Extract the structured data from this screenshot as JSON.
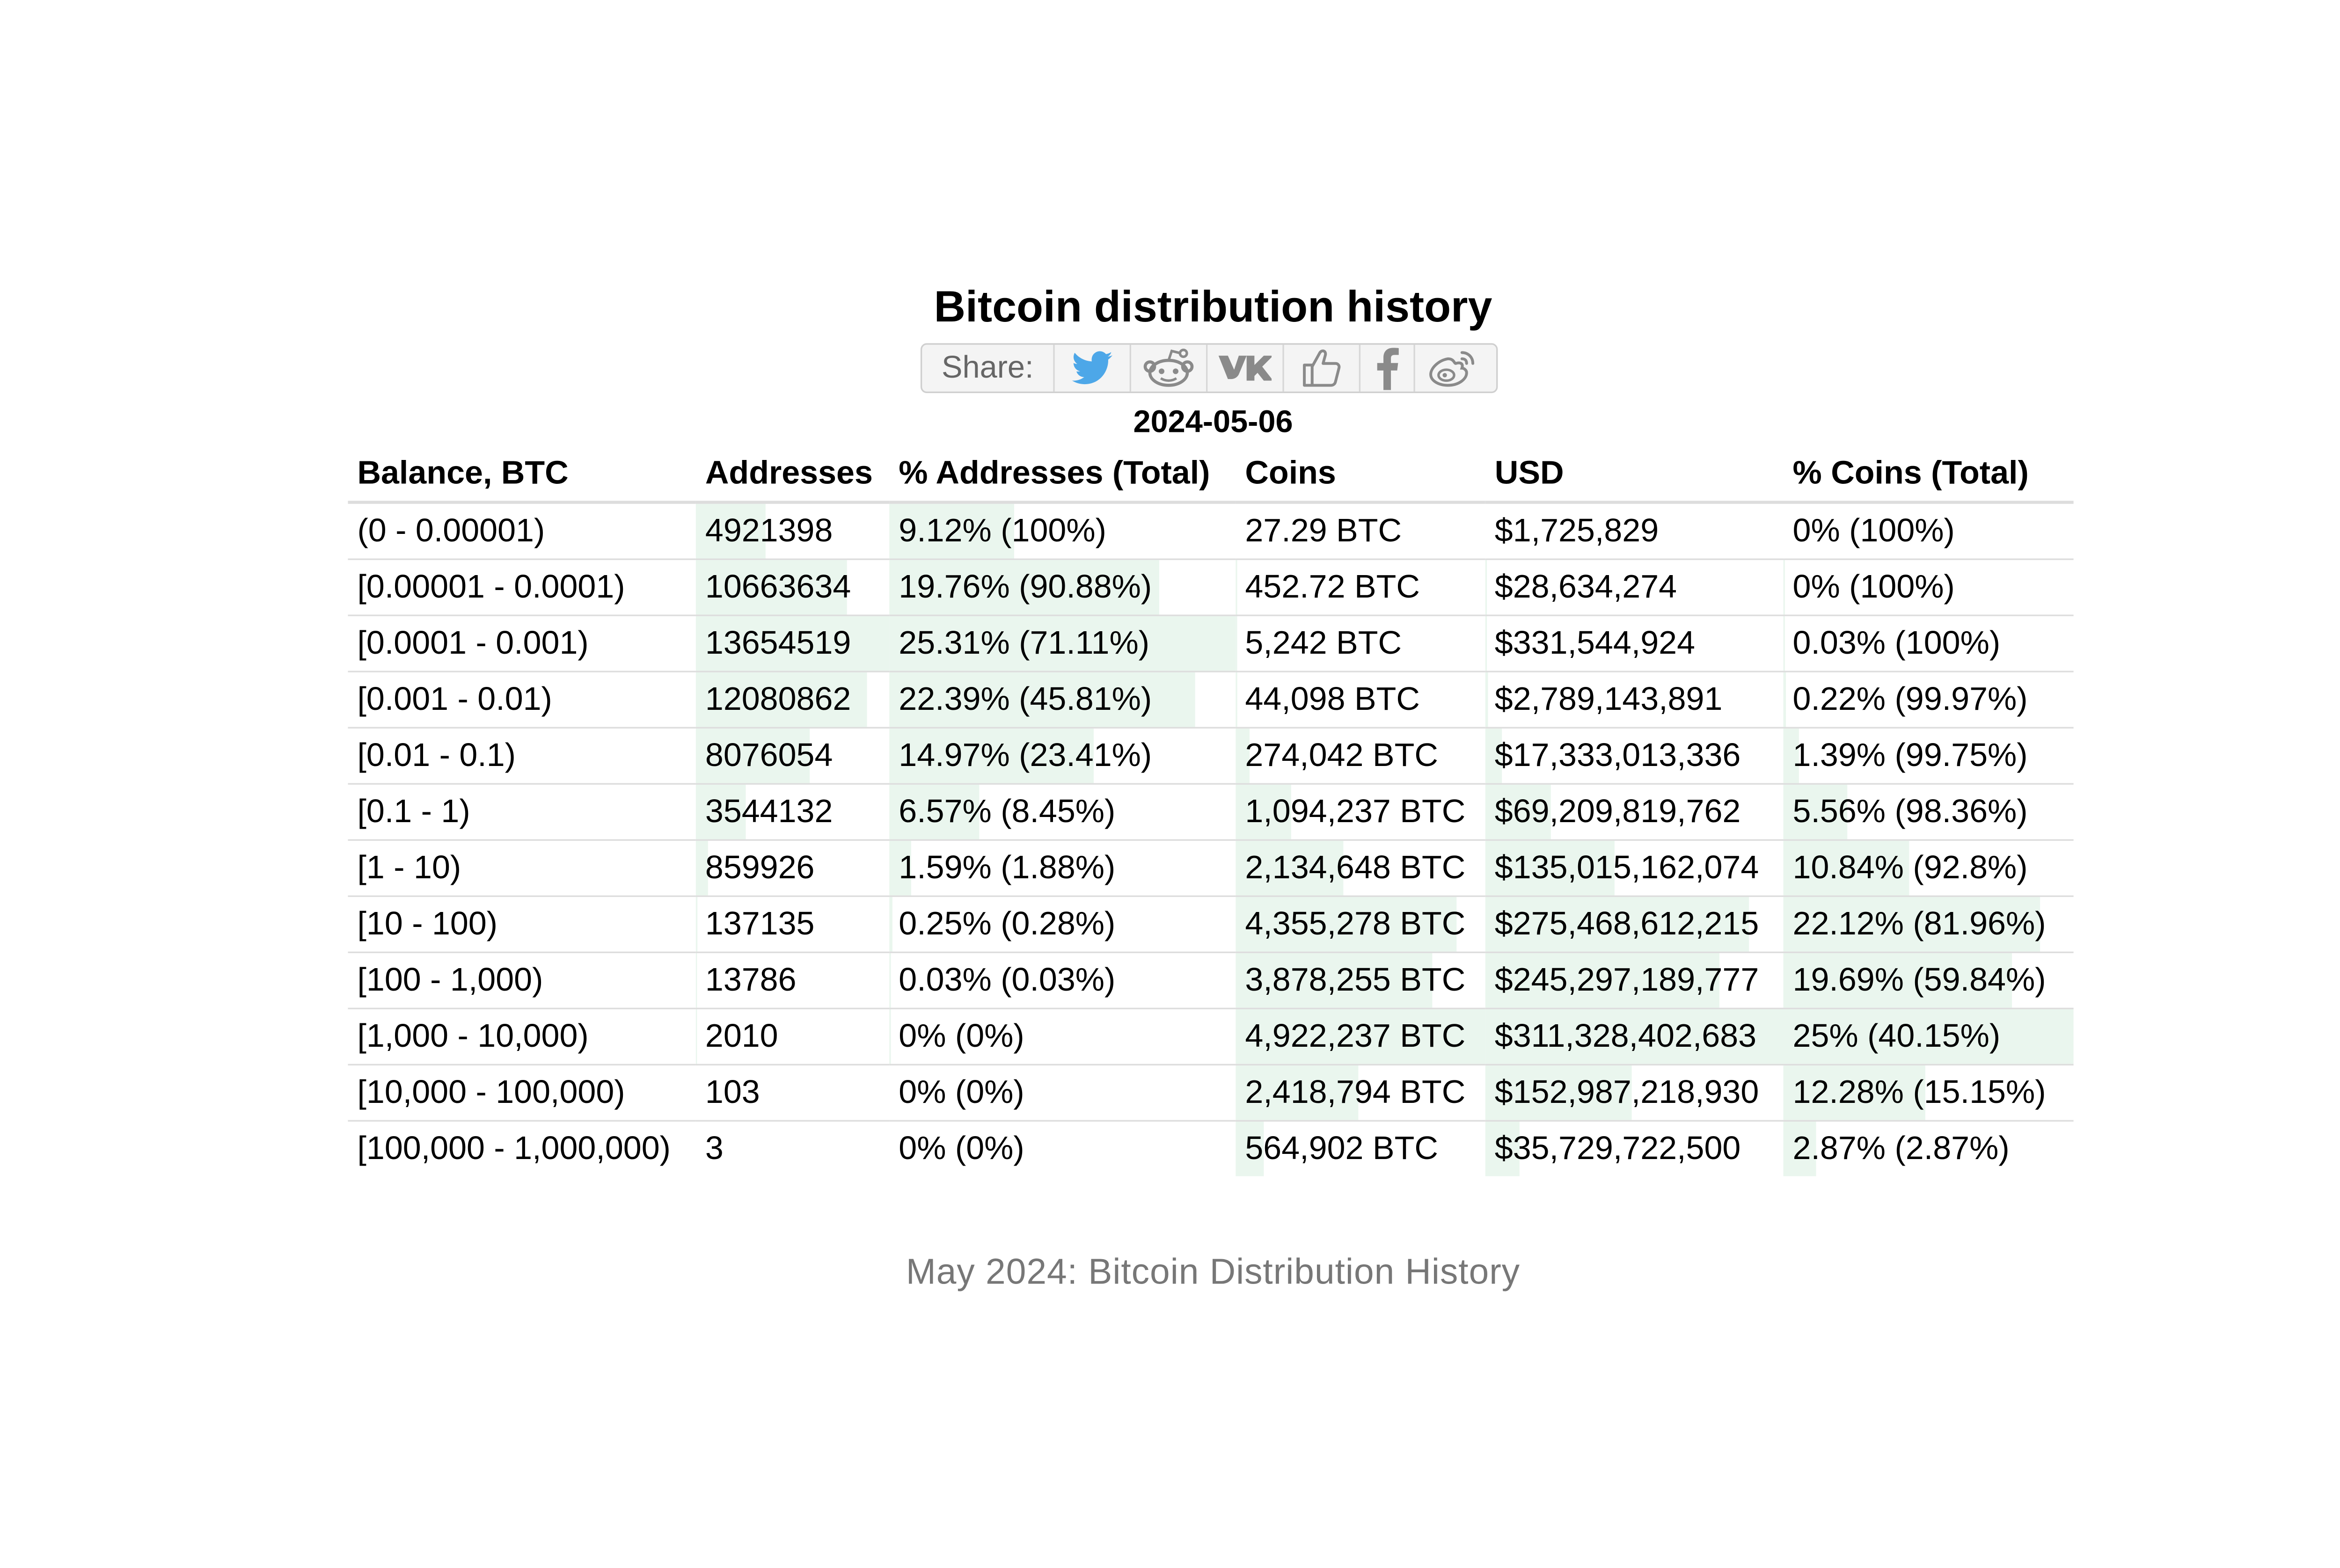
{
  "title": "Bitcoin distribution history",
  "share": {
    "label": "Share:",
    "buttons": [
      {
        "name": "twitter",
        "icon": "twitter-icon"
      },
      {
        "name": "reddit",
        "icon": "reddit-icon"
      },
      {
        "name": "vk",
        "icon": "vk-icon"
      },
      {
        "name": "like",
        "icon": "thumbs-up-icon"
      },
      {
        "name": "facebook",
        "icon": "facebook-icon"
      },
      {
        "name": "weibo",
        "icon": "weibo-icon"
      }
    ]
  },
  "date": "2024-05-06",
  "table": {
    "columns": [
      "Balance, BTC",
      "Addresses",
      "% Addresses (Total)",
      "Coins",
      "USD",
      "% Coins (Total)"
    ],
    "rows": [
      {
        "balance": "(0 - 0.00001)",
        "addresses": "4921398",
        "pct_addresses": "9.12% (100%)",
        "coins": "27.29 BTC",
        "usd": "$1,725,829",
        "pct_coins": "0% (100%)",
        "bar_addresses": 0.3604,
        "bar_pct_addresses": 0.3604,
        "bar_coins": 0.0,
        "bar_usd": 0.0,
        "bar_pct_coins": 0.0
      },
      {
        "balance": "[0.00001 - 0.0001)",
        "addresses": "10663634",
        "pct_addresses": "19.76% (90.88%)",
        "coins": "452.72 BTC",
        "usd": "$28,634,274",
        "pct_coins": "0% (100%)",
        "bar_addresses": 0.781,
        "bar_pct_addresses": 0.781,
        "bar_coins": 0.0001,
        "bar_usd": 0.0001,
        "bar_pct_coins": 0.0001
      },
      {
        "balance": "[0.0001 - 0.001)",
        "addresses": "13654519",
        "pct_addresses": "25.31% (71.11%)",
        "coins": "5,242 BTC",
        "usd": "$331,544,924",
        "pct_coins": "0.03% (100%)",
        "bar_addresses": 1.0,
        "bar_pct_addresses": 1.0,
        "bar_coins": 0.0011,
        "bar_usd": 0.0011,
        "bar_pct_coins": 0.0011
      },
      {
        "balance": "[0.001 - 0.01)",
        "addresses": "12080862",
        "pct_addresses": "22.39% (45.81%)",
        "coins": "44,098 BTC",
        "usd": "$2,789,143,891",
        "pct_coins": "0.22% (99.97%)",
        "bar_addresses": 0.8846,
        "bar_pct_addresses": 0.8846,
        "bar_coins": 0.009,
        "bar_usd": 0.009,
        "bar_pct_coins": 0.009
      },
      {
        "balance": "[0.01 - 0.1)",
        "addresses": "8076054",
        "pct_addresses": "14.97% (23.41%)",
        "coins": "274,042 BTC",
        "usd": "$17,333,013,336",
        "pct_coins": "1.39% (99.75%)",
        "bar_addresses": 0.5915,
        "bar_pct_addresses": 0.5915,
        "bar_coins": 0.0557,
        "bar_usd": 0.0557,
        "bar_pct_coins": 0.0557
      },
      {
        "balance": "[0.1 - 1)",
        "addresses": "3544132",
        "pct_addresses": "6.57% (8.45%)",
        "coins": "1,094,237 BTC",
        "usd": "$69,209,819,762",
        "pct_coins": "5.56% (98.36%)",
        "bar_addresses": 0.2596,
        "bar_pct_addresses": 0.2596,
        "bar_coins": 0.2223,
        "bar_usd": 0.2223,
        "bar_pct_coins": 0.2223
      },
      {
        "balance": "[1 - 10)",
        "addresses": "859926",
        "pct_addresses": "1.59% (1.88%)",
        "coins": "2,134,648 BTC",
        "usd": "$135,015,162,074",
        "pct_coins": "10.84% (92.8%)",
        "bar_addresses": 0.063,
        "bar_pct_addresses": 0.063,
        "bar_coins": 0.4337,
        "bar_usd": 0.4337,
        "bar_pct_coins": 0.4337
      },
      {
        "balance": "[10 - 100)",
        "addresses": "137135",
        "pct_addresses": "0.25% (0.28%)",
        "coins": "4,355,278 BTC",
        "usd": "$275,468,612,215",
        "pct_coins": "22.12% (81.96%)",
        "bar_addresses": 0.01,
        "bar_pct_addresses": 0.01,
        "bar_coins": 0.8848,
        "bar_usd": 0.8848,
        "bar_pct_coins": 0.8848
      },
      {
        "balance": "[100 - 1,000)",
        "addresses": "13786",
        "pct_addresses": "0.03% (0.03%)",
        "coins": "3,878,255 BTC",
        "usd": "$245,297,189,777",
        "pct_coins": "19.69% (59.84%)",
        "bar_addresses": 0.001,
        "bar_pct_addresses": 0.001,
        "bar_coins": 0.7879,
        "bar_usd": 0.7879,
        "bar_pct_coins": 0.7879
      },
      {
        "balance": "[1,000 - 10,000)",
        "addresses": "2010",
        "pct_addresses": "0% (0%)",
        "coins": "4,922,237 BTC",
        "usd": "$311,328,402,683",
        "pct_coins": "25% (40.15%)",
        "bar_addresses": 0.0001,
        "bar_pct_addresses": 0.0001,
        "bar_coins": 1.0,
        "bar_usd": 1.0,
        "bar_pct_coins": 1.0
      },
      {
        "balance": "[10,000 - 100,000)",
        "addresses": "103",
        "pct_addresses": "0% (0%)",
        "coins": "2,418,794 BTC",
        "usd": "$152,987,218,930",
        "pct_coins": "12.28% (15.15%)",
        "bar_addresses": 0.0,
        "bar_pct_addresses": 0.0,
        "bar_coins": 0.4914,
        "bar_usd": 0.4914,
        "bar_pct_coins": 0.4914
      },
      {
        "balance": "[100,000 - 1,000,000)",
        "addresses": "3",
        "pct_addresses": "0% (0%)",
        "coins": "564,902 BTC",
        "usd": "$35,729,722,500",
        "pct_coins": "2.87% (2.87%)",
        "bar_addresses": 0.0,
        "bar_pct_addresses": 0.0,
        "bar_coins": 0.1148,
        "bar_usd": 0.1148,
        "bar_pct_coins": 0.1148
      }
    ]
  },
  "caption": "May 2024: Bitcoin Distribution History",
  "colors": {
    "bar_fill": "#eaf6ee",
    "row_border": "#dddddd",
    "caption": "#777777",
    "twitter": "#4da7e8",
    "icon_gray": "#8a8a8a"
  }
}
